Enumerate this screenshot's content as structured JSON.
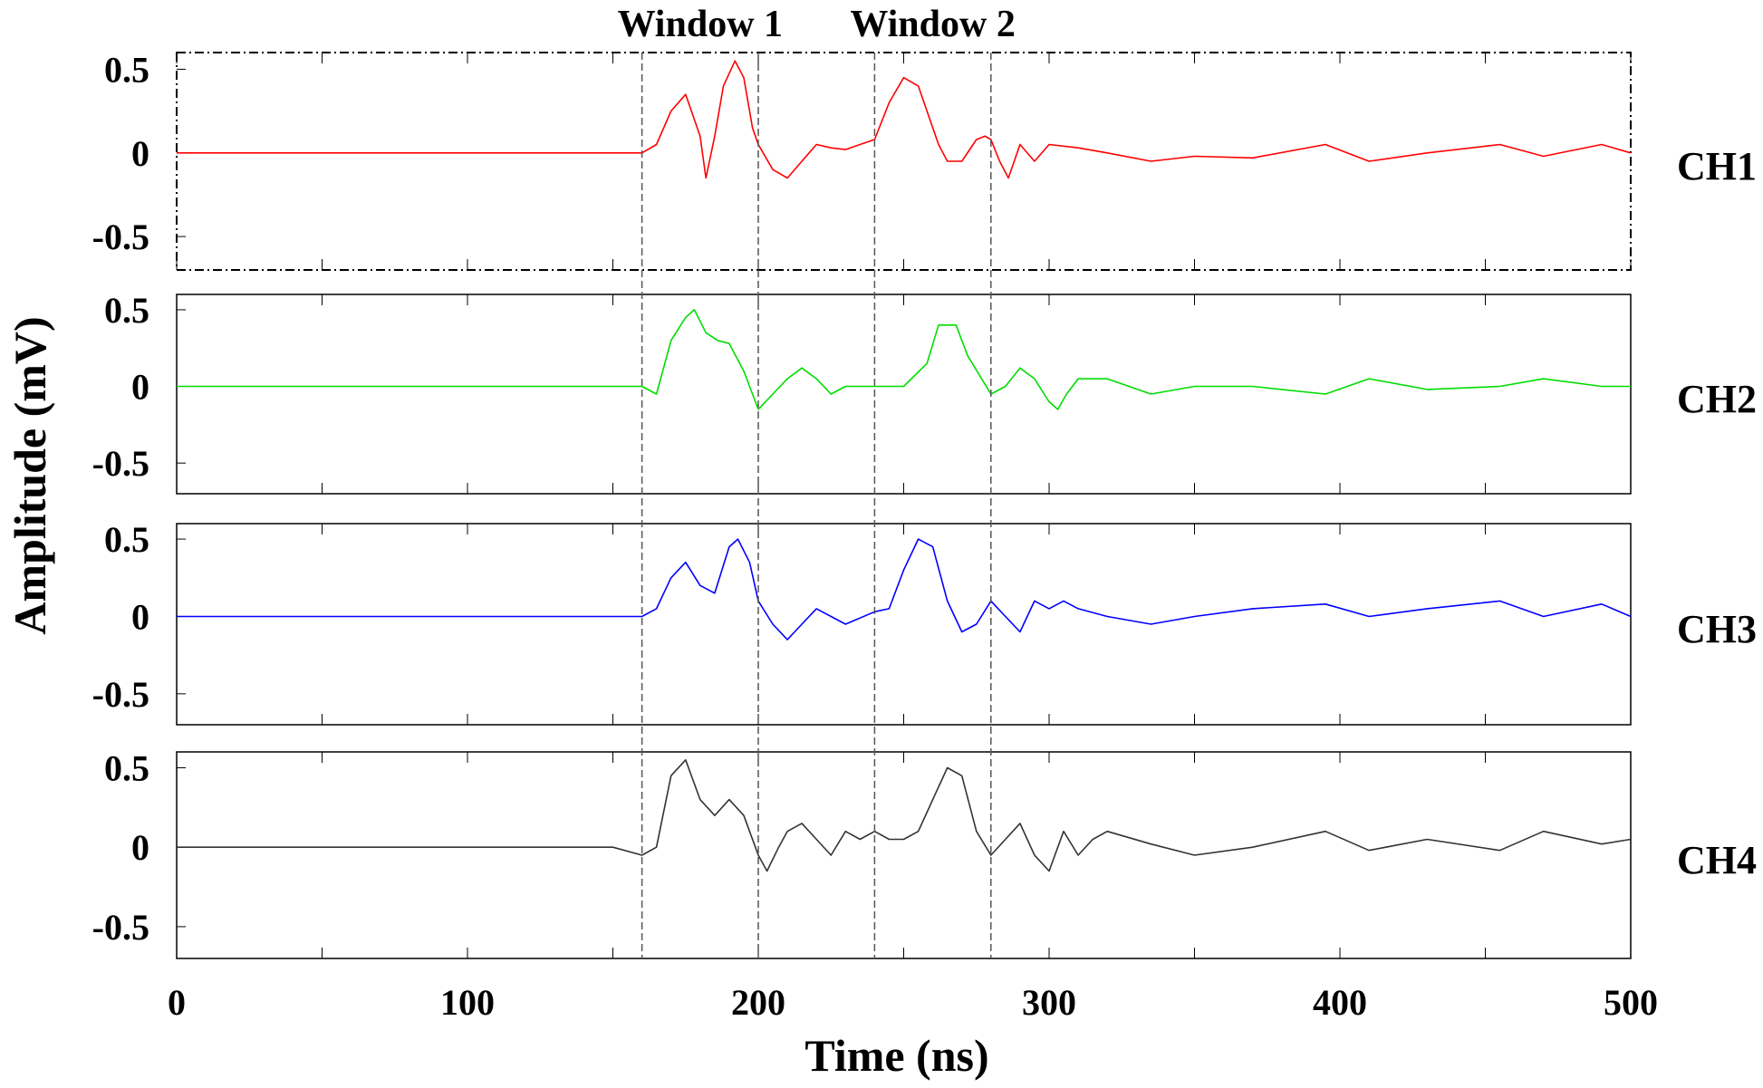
{
  "chart_data": {
    "type": "line",
    "title": "",
    "xlabel": "Time (ns)",
    "ylabel": "Amplitude (mV)",
    "xlim": [
      0,
      500
    ],
    "ylim": [
      -0.7,
      0.6
    ],
    "x_ticks": [
      0,
      100,
      200,
      300,
      400,
      500
    ],
    "x_tick_labels": [
      "0",
      "100",
      "200",
      "300",
      "400",
      "500"
    ],
    "y_ticks": [
      0.5,
      0,
      -0.5
    ],
    "y_tick_labels": [
      "0.5",
      "0",
      "-0.5"
    ],
    "grid": false,
    "windows": [
      {
        "label": "Window 1",
        "start": 160,
        "end": 200
      },
      {
        "label": "Window 2",
        "start": 240,
        "end": 280
      }
    ],
    "series": [
      {
        "name": "CH1",
        "color": "#ff0000",
        "x": [
          0,
          50,
          100,
          150,
          160,
          165,
          170,
          175,
          180,
          182,
          185,
          188,
          192,
          195,
          198,
          200,
          205,
          210,
          215,
          220,
          225,
          230,
          235,
          240,
          245,
          250,
          255,
          258,
          262,
          265,
          270,
          275,
          278,
          280,
          283,
          286,
          290,
          295,
          300,
          310,
          320,
          335,
          350,
          370,
          395,
          410,
          430,
          455,
          470,
          490,
          500
        ],
        "y": [
          0,
          0,
          0,
          0,
          0,
          0.05,
          0.25,
          0.35,
          0.1,
          -0.15,
          0.1,
          0.4,
          0.55,
          0.45,
          0.15,
          0.05,
          -0.1,
          -0.15,
          -0.05,
          0.05,
          0.03,
          0.02,
          0.05,
          0.08,
          0.3,
          0.45,
          0.4,
          0.25,
          0.05,
          -0.05,
          -0.05,
          0.08,
          0.1,
          0.08,
          -0.05,
          -0.15,
          0.05,
          -0.05,
          0.05,
          0.03,
          0,
          -0.05,
          -0.02,
          -0.03,
          0.05,
          -0.05,
          0,
          0.05,
          -0.02,
          0.05,
          0
        ]
      },
      {
        "name": "CH2",
        "color": "#00dd00",
        "x": [
          0,
          50,
          100,
          150,
          160,
          165,
          170,
          175,
          178,
          182,
          186,
          190,
          195,
          200,
          205,
          210,
          215,
          220,
          225,
          230,
          240,
          250,
          258,
          262,
          268,
          272,
          280,
          285,
          290,
          295,
          300,
          303,
          306,
          310,
          320,
          335,
          350,
          370,
          395,
          410,
          430,
          455,
          470,
          490,
          500
        ],
        "y": [
          0,
          0,
          0,
          0,
          0,
          -0.05,
          0.3,
          0.45,
          0.5,
          0.35,
          0.3,
          0.28,
          0.1,
          -0.15,
          -0.05,
          0.05,
          0.12,
          0.05,
          -0.05,
          0,
          0,
          0,
          0.15,
          0.4,
          0.4,
          0.2,
          -0.05,
          0,
          0.12,
          0.05,
          -0.1,
          -0.15,
          -0.05,
          0.05,
          0.05,
          -0.05,
          0,
          0,
          -0.05,
          0.05,
          -0.02,
          0,
          0.05,
          0,
          0
        ]
      },
      {
        "name": "CH3",
        "color": "#0000ff",
        "x": [
          0,
          50,
          100,
          150,
          160,
          165,
          170,
          175,
          180,
          185,
          190,
          193,
          197,
          200,
          205,
          210,
          215,
          220,
          230,
          240,
          245,
          250,
          255,
          260,
          265,
          270,
          275,
          280,
          285,
          290,
          295,
          300,
          305,
          310,
          320,
          335,
          350,
          370,
          395,
          410,
          430,
          455,
          470,
          490,
          500
        ],
        "y": [
          0,
          0,
          0,
          0,
          0,
          0.05,
          0.25,
          0.35,
          0.2,
          0.15,
          0.45,
          0.5,
          0.35,
          0.1,
          -0.05,
          -0.15,
          -0.05,
          0.05,
          -0.05,
          0.03,
          0.05,
          0.3,
          0.5,
          0.45,
          0.1,
          -0.1,
          -0.05,
          0.1,
          0,
          -0.1,
          0.1,
          0.05,
          0.1,
          0.05,
          0,
          -0.05,
          0,
          0.05,
          0.08,
          0,
          0.05,
          0.1,
          0,
          0.08,
          0
        ]
      },
      {
        "name": "CH4",
        "color": "#333333",
        "x": [
          0,
          50,
          100,
          150,
          160,
          165,
          170,
          175,
          180,
          185,
          190,
          195,
          200,
          203,
          207,
          210,
          215,
          220,
          225,
          230,
          235,
          240,
          245,
          250,
          255,
          260,
          265,
          270,
          275,
          280,
          285,
          290,
          295,
          300,
          305,
          310,
          315,
          320,
          335,
          350,
          370,
          395,
          410,
          430,
          455,
          470,
          490,
          500
        ],
        "y": [
          0,
          0,
          0,
          0,
          -0.05,
          0,
          0.45,
          0.55,
          0.3,
          0.2,
          0.3,
          0.2,
          -0.05,
          -0.15,
          0,
          0.1,
          0.15,
          0.05,
          -0.05,
          0.1,
          0.05,
          0.1,
          0.05,
          0.05,
          0.1,
          0.3,
          0.5,
          0.45,
          0.1,
          -0.05,
          0.05,
          0.15,
          -0.05,
          -0.15,
          0.1,
          -0.05,
          0.05,
          0.1,
          0.02,
          -0.05,
          0,
          0.1,
          -0.02,
          0.05,
          -0.02,
          0.1,
          0.02,
          0.05
        ]
      }
    ]
  }
}
